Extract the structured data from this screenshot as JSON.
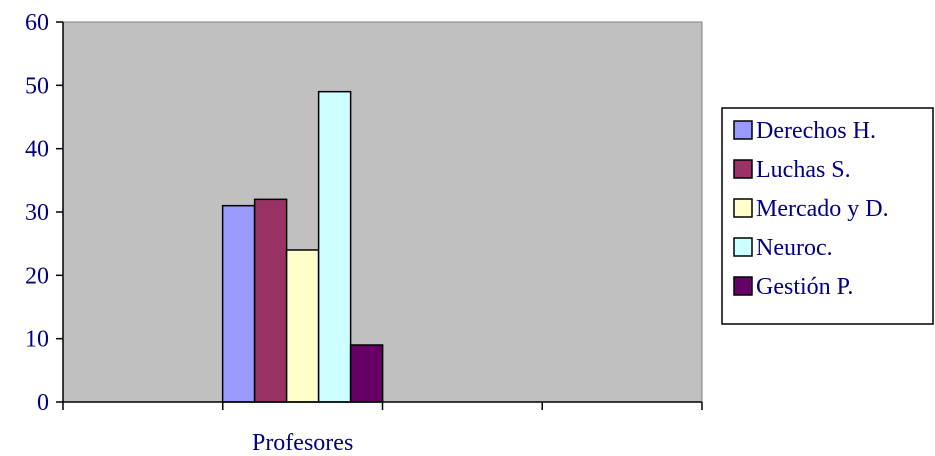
{
  "chart_data": {
    "type": "bar",
    "categories": [
      "Profesores"
    ],
    "series": [
      {
        "name": "Derechos H.",
        "values": [
          31
        ],
        "color": "#9999FF"
      },
      {
        "name": "Luchas S.",
        "values": [
          32
        ],
        "color": "#993366"
      },
      {
        "name": "Mercado y D.",
        "values": [
          24
        ],
        "color": "#FFFFCC"
      },
      {
        "name": "Neuroc.",
        "values": [
          49
        ],
        "color": "#CCFFFF"
      },
      {
        "name": "Gestión P.",
        "values": [
          9
        ],
        "color": "#660066"
      }
    ],
    "ylim": [
      0,
      60
    ],
    "yticks": [
      "0",
      "10",
      "20",
      "30",
      "40",
      "50",
      "60"
    ],
    "plot_background": "#C0C0C0",
    "grid": false,
    "legend_position": "right",
    "title": "",
    "xlabel": "",
    "ylabel": ""
  }
}
